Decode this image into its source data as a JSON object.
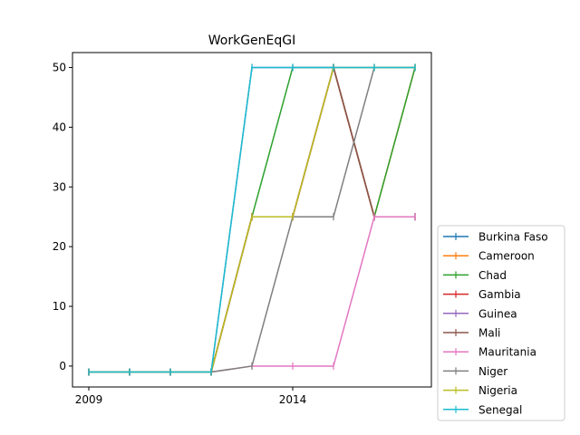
{
  "chart_data": {
    "type": "line",
    "title": "WorkGenEqGI",
    "xlabel": "",
    "ylabel": "",
    "x": [
      2009,
      2010,
      2011,
      2012,
      2013,
      2014,
      2015,
      2016,
      2017
    ],
    "x_ticks": [
      "2009",
      "2014"
    ],
    "y_ticks": [
      "0",
      "10",
      "20",
      "30",
      "40",
      "50"
    ],
    "xlim": [
      2008.6,
      2017.4
    ],
    "ylim": [
      -3.5,
      52.5
    ],
    "grid": false,
    "legend_position": "lower right outside",
    "marker": "|",
    "series": [
      {
        "name": "Burkina Faso",
        "color": "#1f77b4",
        "values": [
          -1,
          -1,
          -1,
          -1,
          25,
          25,
          50,
          25,
          25
        ]
      },
      {
        "name": "Cameroon",
        "color": "#ff7f0e",
        "values": [
          -1,
          -1,
          -1,
          -1,
          25,
          25,
          50,
          25,
          50
        ]
      },
      {
        "name": "Chad",
        "color": "#2ca02c",
        "values": [
          -1,
          -1,
          -1,
          -1,
          25,
          50,
          50,
          25,
          50
        ]
      },
      {
        "name": "Gambia",
        "color": "#d62728",
        "values": [
          -1,
          -1,
          -1,
          -1,
          25,
          25,
          50,
          25,
          25
        ]
      },
      {
        "name": "Guinea",
        "color": "#9467bd",
        "values": [
          -1,
          -1,
          -1,
          -1,
          50,
          50,
          50,
          50,
          50
        ]
      },
      {
        "name": "Mali",
        "color": "#8c564b",
        "values": [
          -1,
          -1,
          -1,
          -1,
          25,
          25,
          50,
          25,
          25
        ]
      },
      {
        "name": "Mauritania",
        "color": "#e377c2",
        "values": [
          -1,
          -1,
          -1,
          -1,
          0,
          0,
          0,
          25,
          25
        ]
      },
      {
        "name": "Niger",
        "color": "#7f7f7f",
        "values": [
          -1,
          -1,
          -1,
          -1,
          0,
          25,
          25,
          50,
          50
        ]
      },
      {
        "name": "Nigeria",
        "color": "#bcbd22",
        "values": [
          -1,
          -1,
          -1,
          -1,
          25,
          25,
          50,
          50,
          50
        ]
      },
      {
        "name": "Senegal",
        "color": "#17becf",
        "values": [
          -1,
          -1,
          -1,
          -1,
          50,
          50,
          50,
          50,
          50
        ]
      }
    ]
  }
}
